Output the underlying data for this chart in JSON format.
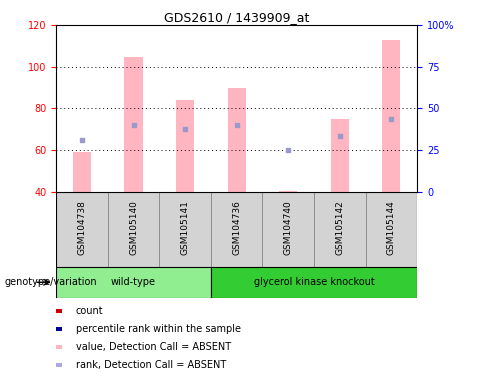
{
  "title": "GDS2610 / 1439909_at",
  "samples": [
    "GSM104738",
    "GSM105140",
    "GSM105141",
    "GSM104736",
    "GSM104740",
    "GSM105142",
    "GSM105144"
  ],
  "bar_values": [
    59.0,
    104.5,
    84.0,
    90.0,
    40.5,
    75.0,
    113.0
  ],
  "bar_bottom": 40,
  "rank_dots": [
    65.0,
    72.0,
    70.0,
    72.0,
    60.0,
    67.0,
    75.0
  ],
  "bar_color": "#FFB6C1",
  "dot_color": "#9999CC",
  "ylim_left": [
    40,
    120
  ],
  "ylim_right": [
    0,
    100
  ],
  "yticks_left": [
    40,
    60,
    80,
    100,
    120
  ],
  "yticks_right": [
    0,
    25,
    50,
    75,
    100
  ],
  "ytick_labels_right": [
    "0",
    "25",
    "50",
    "75",
    "100%"
  ],
  "bg_color": "#ffffff",
  "legend_items": [
    {
      "color": "#CC0000",
      "label": "count"
    },
    {
      "color": "#000099",
      "label": "percentile rank within the sample"
    },
    {
      "color": "#FFB6C1",
      "label": "value, Detection Call = ABSENT"
    },
    {
      "color": "#AAAADD",
      "label": "rank, Detection Call = ABSENT"
    }
  ],
  "genotype_label": "genotype/variation",
  "bar_width": 0.35,
  "wt_color": "#90EE90",
  "gk_color": "#33CC33",
  "sample_box_color": "#D3D3D3",
  "sample_box_edge_color": "#888888",
  "title_fontsize": 9,
  "tick_fontsize": 7,
  "label_fontsize": 7,
  "legend_fontsize": 7
}
